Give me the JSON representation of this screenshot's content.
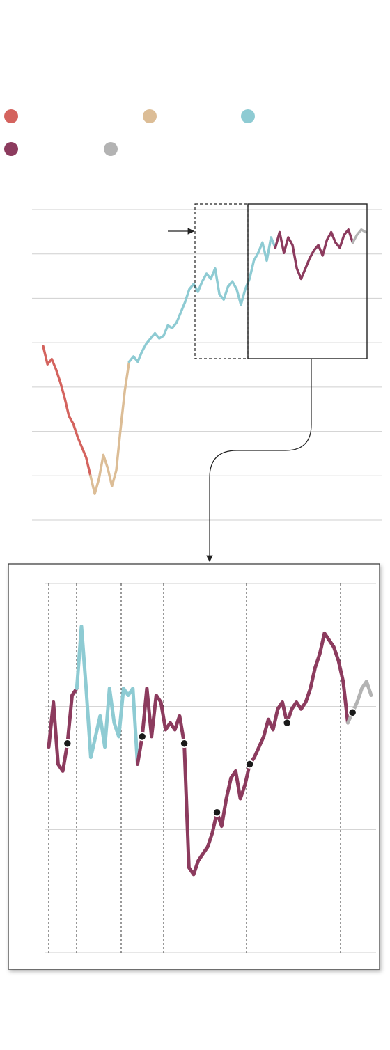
{
  "chart_data": [
    {
      "type": "line",
      "title": "",
      "xlabel": "",
      "ylabel": "",
      "gridlines": 8,
      "segments": [
        {
          "color": "#d4635e",
          "values": [
            0.72,
            0.65,
            0.67,
            0.63,
            0.58,
            0.52,
            0.45,
            0.42,
            0.37,
            0.33,
            0.29,
            0.22
          ]
        },
        {
          "color": "#dcbd96",
          "values": [
            0.22,
            0.15,
            0.21,
            0.3,
            0.25,
            0.18,
            0.24,
            0.4,
            0.55,
            0.66
          ]
        },
        {
          "color": "#8ecbd3",
          "values": [
            0.66,
            0.68,
            0.66,
            0.7,
            0.73,
            0.75,
            0.77,
            0.75,
            0.76,
            0.8,
            0.79,
            0.81,
            0.85,
            0.89,
            0.94,
            0.96,
            0.93,
            0.97,
            1.0,
            0.98,
            1.02,
            0.92,
            0.9,
            0.95,
            0.97,
            0.94,
            0.88,
            0.94,
            0.98,
            1.05,
            1.08,
            1.12,
            1.05,
            1.14,
            1.1
          ]
        },
        {
          "color": "#8c3b5e",
          "values": [
            1.1,
            1.16,
            1.08,
            1.14,
            1.11,
            1.02,
            0.98,
            1.02,
            1.06,
            1.09,
            1.11,
            1.07,
            1.13,
            1.16,
            1.12,
            1.1,
            1.15,
            1.17,
            1.12
          ]
        },
        {
          "color": "#b3b3b3",
          "values": [
            1.12,
            1.15,
            1.17,
            1.16
          ]
        }
      ]
    },
    {
      "type": "line",
      "title": "",
      "gridlines": 4,
      "segments": [
        {
          "color": "#8c3b5e",
          "values": [
            55,
            68,
            50,
            48,
            56,
            70,
            72
          ]
        },
        {
          "color": "#8ecbd3",
          "values": [
            72,
            90,
            72,
            52,
            58,
            64,
            55,
            72,
            62,
            58,
            72,
            70,
            72,
            50
          ]
        },
        {
          "color": "#8c3b5e",
          "values": [
            50,
            58,
            72,
            58,
            70,
            68,
            60,
            62,
            60,
            64,
            56,
            20,
            18,
            22,
            24,
            26,
            30,
            36,
            32,
            40,
            46,
            48,
            40,
            44,
            50,
            52,
            55,
            58,
            63,
            60,
            66,
            68,
            62,
            66,
            68,
            66,
            68,
            72,
            78,
            82,
            88,
            86,
            84,
            80,
            74,
            62
          ]
        },
        {
          "color": "#b3b3b3",
          "values": [
            62,
            65,
            68,
            72,
            74,
            70
          ]
        }
      ],
      "markers": [
        4,
        20,
        29,
        36,
        43,
        51,
        65
      ]
    }
  ]
}
